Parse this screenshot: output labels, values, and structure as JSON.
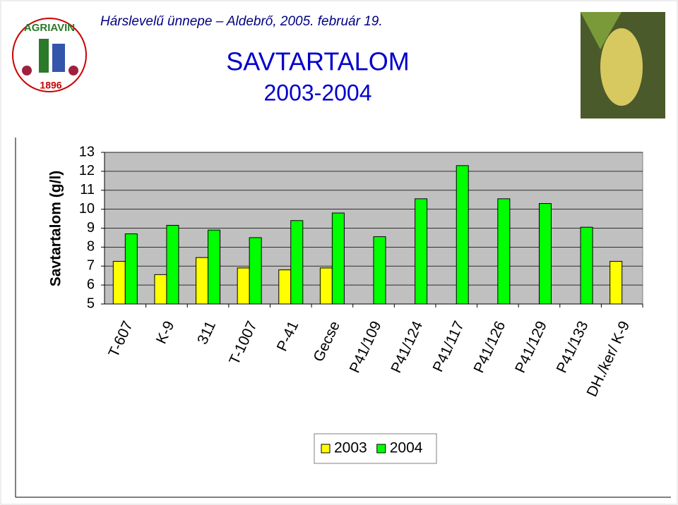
{
  "header": "Hárslevelű ünnepe – Aldebrő, 2005. február 19.",
  "logo": {
    "name": "AGRIAVIN",
    "year": "1896"
  },
  "chart_data": {
    "type": "bar",
    "title": "SAVTARTALOM",
    "subtitle": "2003-2004",
    "y_label": "Savtartalom (g/l)",
    "categories": [
      "T-607",
      "K-9",
      "311",
      "T-1007",
      "P-41",
      "Gecse",
      "P41/109",
      "P41/124",
      "P41/117",
      "P41/126",
      "P41/129",
      "P41/133",
      "DH./ker/ K-9"
    ],
    "series": [
      {
        "name": "2003",
        "color": "#ffff00",
        "values": [
          7.25,
          6.55,
          7.45,
          6.9,
          6.8,
          6.9,
          null,
          null,
          null,
          null,
          null,
          null,
          7.25
        ]
      },
      {
        "name": "2004",
        "color": "#00ff00",
        "values": [
          8.7,
          9.15,
          8.9,
          8.5,
          9.4,
          9.8,
          8.55,
          10.55,
          12.3,
          10.55,
          10.3,
          9.05,
          null
        ]
      }
    ],
    "ylim": [
      5,
      13
    ],
    "yticks": [
      5,
      6,
      7,
      8,
      9,
      10,
      11,
      12,
      13
    ],
    "grid": true,
    "plot_background": "#c0c0c0",
    "legend": "bottom"
  }
}
